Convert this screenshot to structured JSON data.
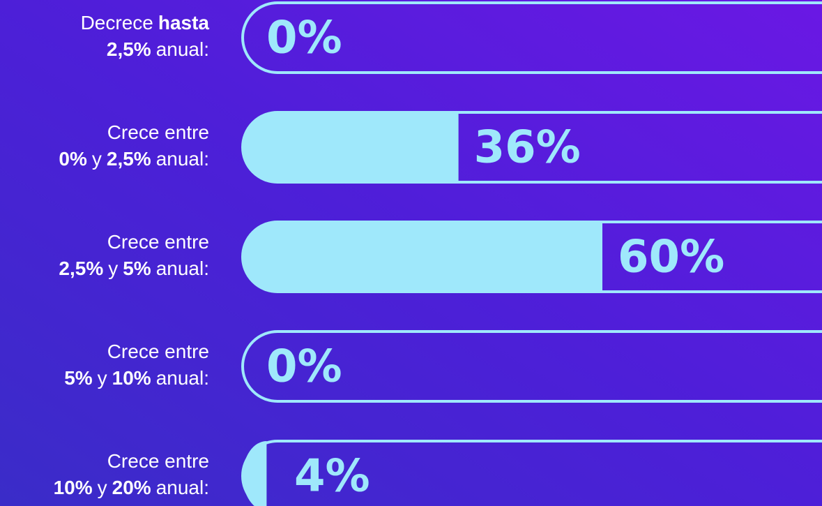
{
  "chart_data": {
    "type": "bar",
    "categories": [
      [
        [
          {
            "text": "Decrece"
          },
          {
            "text": "hasta",
            "bold": true
          }
        ],
        [
          {
            "text": "2,5%",
            "bold": true
          },
          {
            "text": "anual:"
          }
        ]
      ],
      [
        [
          {
            "text": "Crece entre"
          }
        ],
        [
          {
            "text": "0%",
            "bold": true
          },
          {
            "text": "y"
          },
          {
            "text": "2,5%",
            "bold": true
          },
          {
            "text": "anual:"
          }
        ]
      ],
      [
        [
          {
            "text": "Crece entre"
          }
        ],
        [
          {
            "text": "2,5%",
            "bold": true
          },
          {
            "text": "y"
          },
          {
            "text": "5%",
            "bold": true
          },
          {
            "text": "anual:"
          }
        ]
      ],
      [
        [
          {
            "text": "Crece entre"
          }
        ],
        [
          {
            "text": "5%",
            "bold": true
          },
          {
            "text": "y"
          },
          {
            "text": "10%",
            "bold": true
          },
          {
            "text": "anual:"
          }
        ]
      ],
      [
        [
          {
            "text": "Crece entre"
          }
        ],
        [
          {
            "text": "10%",
            "bold": true
          },
          {
            "text": "y"
          },
          {
            "text": "20%",
            "bold": true
          },
          {
            "text": "anual:"
          }
        ]
      ]
    ],
    "values": [
      0,
      36,
      60,
      0,
      4
    ],
    "value_labels": [
      "0%",
      "36%",
      "60%",
      "0%",
      "4%"
    ],
    "xlim": [
      0,
      100
    ],
    "color": "#9fe8fb"
  }
}
